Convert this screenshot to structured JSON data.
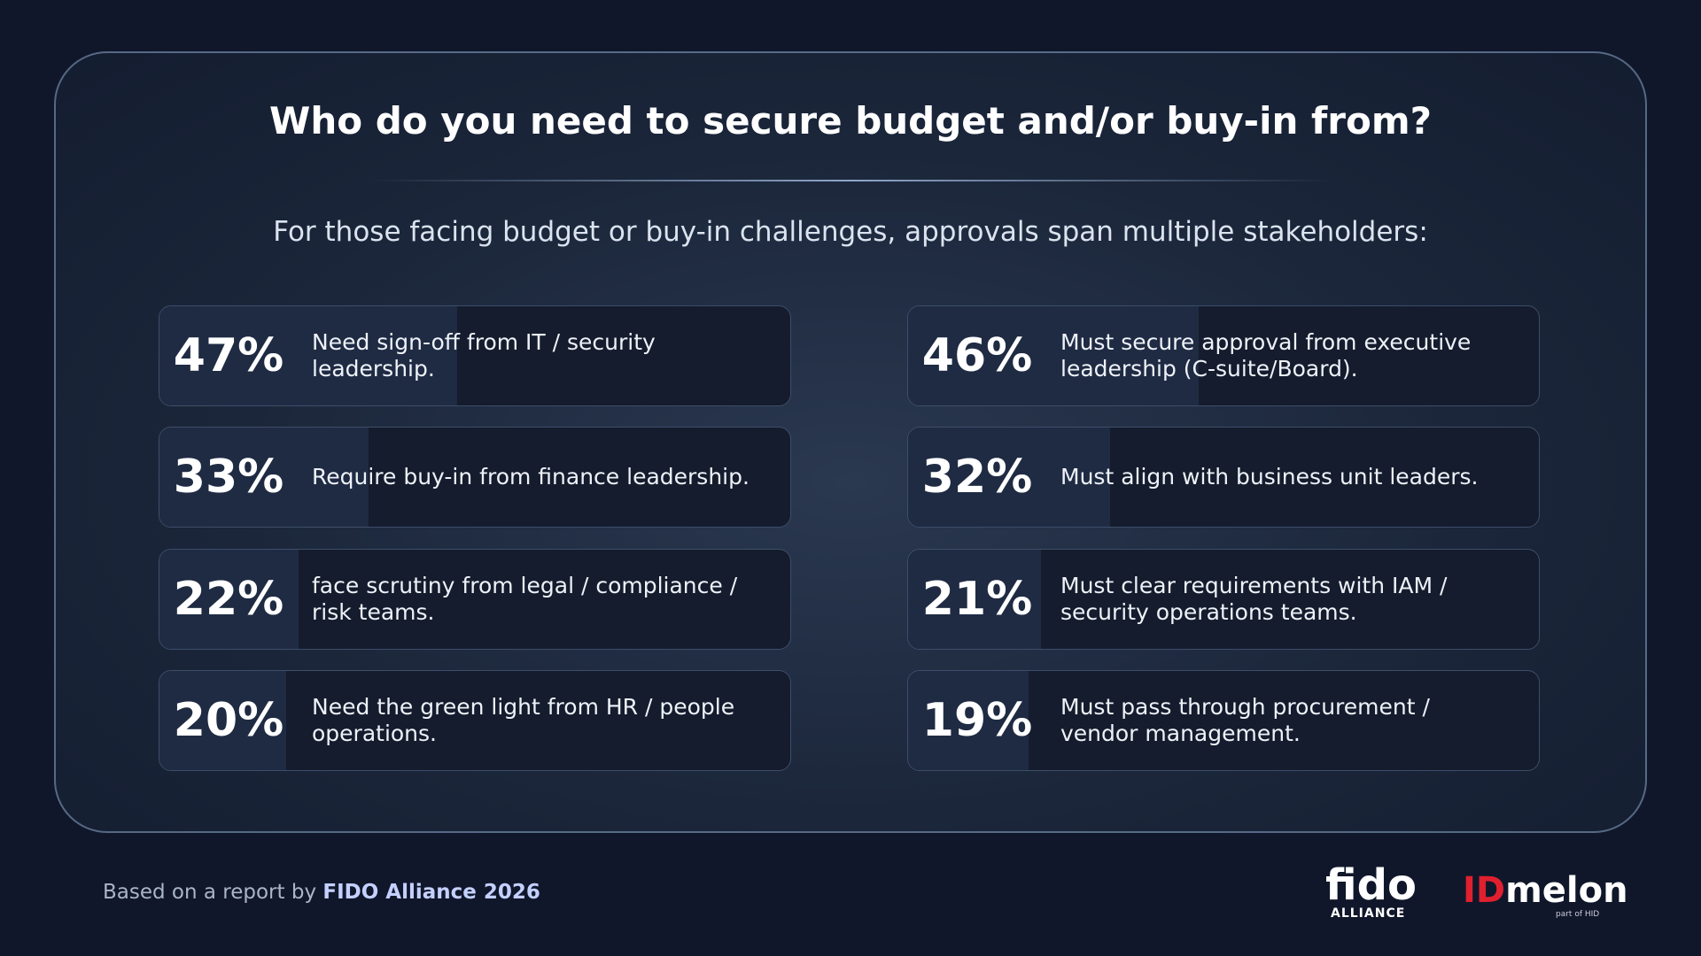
{
  "chart_data": {
    "type": "bar",
    "title": "Who do you need to secure budget and/or buy-in from?",
    "subtitle": "For those facing budget or buy-in challenges, approvals span multiple stakeholders:",
    "categories": [
      "Need sign-off from IT / security leadership.",
      "Must secure approval from executive leadership (C-suite/Board).",
      "Require buy-in from finance leadership.",
      "Must align with business unit leaders.",
      "face scrutiny from legal / compliance / risk teams.",
      "Must clear requirements with IAM / security operations teams.",
      "Need the green light from HR / people operations.",
      "Must pass through procurement / vendor management."
    ],
    "values": [
      47,
      46,
      33,
      32,
      22,
      21,
      20,
      19
    ],
    "value_labels": [
      "47%",
      "46%",
      "33%",
      "32%",
      "22%",
      "21%",
      "20%",
      "19%"
    ],
    "ylim": [
      0,
      100
    ],
    "color": "#1f2b43"
  },
  "footer": {
    "text": "Based on a report by",
    "source": "FIDO Alliance 2026"
  },
  "logos": {
    "fido": "fido",
    "fido_sub": "ALLIANCE",
    "idmelon_id": "ID",
    "idmelon": "melon",
    "idmelon_sub": "part of HID"
  }
}
